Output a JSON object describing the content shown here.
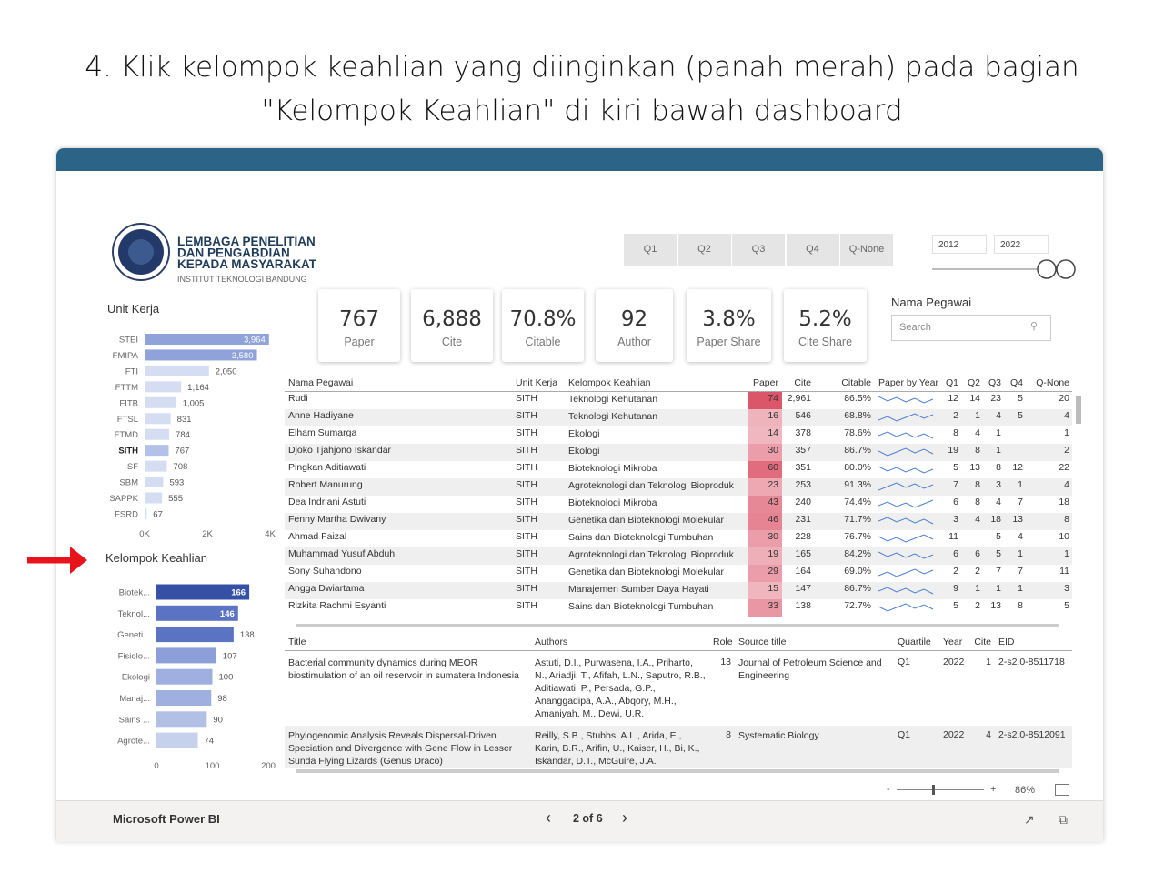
{
  "instruction": "4. Klik kelompok keahlian yang diinginkan (panah merah) pada bagian \"Kelompok Keahlian\" di kiri bawah dashboard",
  "dashboard": {
    "org": {
      "lines": [
        "LEMBAGA PENELITIAN",
        "DAN PENGABDIAN",
        "KEPADA MASYARAKAT"
      ],
      "subtitle": "INSTITUT TEKNOLOGI BANDUNG"
    },
    "quarter_buttons": [
      "Q1",
      "Q2",
      "Q3",
      "Q4",
      "Q-None"
    ],
    "year_range": [
      "2012",
      "2022"
    ],
    "kpis": [
      {
        "value": "767",
        "label": "Paper"
      },
      {
        "value": "6,888",
        "label": "Cite"
      },
      {
        "value": "70.8%",
        "label": "Citable"
      },
      {
        "value": "92",
        "label": "Author"
      },
      {
        "value": "3.8%",
        "label": "Paper Share"
      },
      {
        "value": "5.2%",
        "label": "Cite Share"
      }
    ],
    "employee_filter": {
      "title": "Nama Pegawai",
      "placeholder": "Search"
    },
    "unit_kerja_chart": {
      "type": "bar",
      "orientation": "horizontal",
      "title": "Unit Kerja",
      "categories": [
        "STEI",
        "FMIPA",
        "FTI",
        "FTTM",
        "FITB",
        "FTSL",
        "FTMD",
        "SITH",
        "SF",
        "SBM",
        "SAPPK",
        "FSRD"
      ],
      "values": [
        3964,
        3580,
        2050,
        1164,
        1005,
        831,
        784,
        767,
        708,
        593,
        555,
        67
      ],
      "value_labels": [
        "3,964",
        "3,580",
        "2,050",
        "1,164",
        "1,005",
        "831",
        "784",
        "767",
        "708",
        "593",
        "555",
        "67"
      ],
      "xlim": [
        0,
        4000
      ],
      "xticks": [
        {
          "value": 0,
          "label": "0K"
        },
        {
          "value": 2000,
          "label": "2K"
        },
        {
          "value": 4000,
          "label": "4K"
        }
      ],
      "colors": [
        "#8fa2d9",
        "#8fa2d9",
        "#d5ddf3",
        "#d5ddf3",
        "#d5ddf3",
        "#d5ddf3",
        "#d5ddf3",
        "#b3c1e8",
        "#d5ddf3",
        "#d5ddf3",
        "#d5ddf3",
        "#d5ddf3"
      ],
      "selected_index": 7
    },
    "kelompok_chart": {
      "type": "bar",
      "orientation": "horizontal",
      "title": "Kelompok Keahlian",
      "categories": [
        "Biotek...",
        "Teknol...",
        "Geneti...",
        "Fisiolo...",
        "Ekologi",
        "Manaj...",
        "Sains ...",
        "Agrote..."
      ],
      "values": [
        166,
        146,
        138,
        107,
        100,
        98,
        90,
        74
      ],
      "xlim": [
        0,
        200
      ],
      "xticks": [
        0,
        100,
        200
      ],
      "colors": [
        "#3451a5",
        "#5a73c2",
        "#5a73c2",
        "#8d9fd8",
        "#9fafdf",
        "#9fafdf",
        "#b2c0e6",
        "#c6d1ee"
      ]
    },
    "employee_table": {
      "columns": [
        "Nama Pegawai",
        "Unit Kerja",
        "Kelompok Keahlian",
        "Paper",
        "Cite",
        "Citable",
        "Paper by Year",
        "Q1",
        "Q2",
        "Q3",
        "Q4",
        "Q-None"
      ],
      "rows": [
        [
          "Rudi",
          "SITH",
          "Teknologi Kehutanan",
          "74",
          "2,961",
          "86.5%",
          "12",
          "14",
          "23",
          "5",
          "20"
        ],
        [
          "Anne Hadiyane",
          "SITH",
          "Teknologi Kehutanan",
          "16",
          "546",
          "68.8%",
          "2",
          "1",
          "4",
          "5",
          "4"
        ],
        [
          "Elham Sumarga",
          "SITH",
          "Ekologi",
          "14",
          "378",
          "78.6%",
          "8",
          "4",
          "1",
          null,
          "1"
        ],
        [
          "Djoko Tjahjono Iskandar",
          "SITH",
          "Ekologi",
          "30",
          "357",
          "86.7%",
          "19",
          "8",
          "1",
          null,
          "2"
        ],
        [
          "Pingkan Aditiawati",
          "SITH",
          "Bioteknologi Mikroba",
          "60",
          "351",
          "80.0%",
          "5",
          "13",
          "8",
          "12",
          "22"
        ],
        [
          "Robert Manurung",
          "SITH",
          "Agroteknologi dan Teknologi Bioproduk",
          "23",
          "253",
          "91.3%",
          "7",
          "8",
          "3",
          "1",
          "4"
        ],
        [
          "Dea Indriani Astuti",
          "SITH",
          "Bioteknologi Mikroba",
          "43",
          "240",
          "74.4%",
          "6",
          "8",
          "4",
          "7",
          "18"
        ],
        [
          "Fenny Martha Dwivany",
          "SITH",
          "Genetika dan Bioteknologi Molekular",
          "46",
          "231",
          "71.7%",
          "3",
          "4",
          "18",
          "13",
          "8"
        ],
        [
          "Ahmad Faizal",
          "SITH",
          "Sains dan Bioteknologi Tumbuhan",
          "30",
          "228",
          "76.7%",
          "11",
          null,
          "5",
          "4",
          "10"
        ],
        [
          "Muhammad Yusuf Abduh",
          "SITH",
          "Agroteknologi dan Teknologi Bioproduk",
          "19",
          "165",
          "84.2%",
          "6",
          "6",
          "5",
          "1",
          "1"
        ],
        [
          "Sony Suhandono",
          "SITH",
          "Genetika dan Bioteknologi Molekular",
          "29",
          "164",
          "69.0%",
          "2",
          "2",
          "7",
          "7",
          "11"
        ],
        [
          "Angga Dwiartama",
          "SITH",
          "Manajemen Sumber Daya Hayati",
          "15",
          "147",
          "86.7%",
          "9",
          "1",
          "1",
          "1",
          "3"
        ],
        [
          "Rizkita Rachmi Esyanti",
          "SITH",
          "Sains dan Bioteknologi Tumbuhan",
          "33",
          "138",
          "72.7%",
          "5",
          "2",
          "13",
          "8",
          "5"
        ]
      ]
    },
    "publication_table": {
      "columns": [
        "Title",
        "Authors",
        "Role",
        "Source title",
        "Quartile",
        "Year",
        "Cite",
        "EID"
      ],
      "rows": [
        [
          "Bacterial community dynamics during MEOR biostimulation of an oil reservoir in sumatera Indonesia",
          "Astuti, D.I., Purwasena, I.A., Priharto, N., Ariadji, T., Afifah, L.N., Saputro, R.B., Aditiawati, P., Persada, G.P., Ananggadipa, A.A., Abqory, M.H., Amaniyah, M., Dewi, U.R.",
          "13",
          "Journal of Petroleum Science and Engineering",
          "Q1",
          "2022",
          "1",
          "2-s2.0-8511718"
        ],
        [
          "Phylogenomic Analysis Reveals Dispersal-Driven Speciation and Divergence with Gene Flow in Lesser Sunda Flying Lizards (Genus Draco)",
          "Reilly, S.B., Stubbs, A.L., Arida, E., Karin, B.R., Arifin, U., Kaiser, H., Bi, K., Iskandar, D.T., McGuire, J.A.",
          "8",
          "Systematic Biology",
          "Q1",
          "2022",
          "4",
          "2-s2.0-8512091"
        ]
      ]
    },
    "footer": {
      "brand": "Microsoft Power BI",
      "page": "2 of 6",
      "zoom": "86%"
    }
  }
}
